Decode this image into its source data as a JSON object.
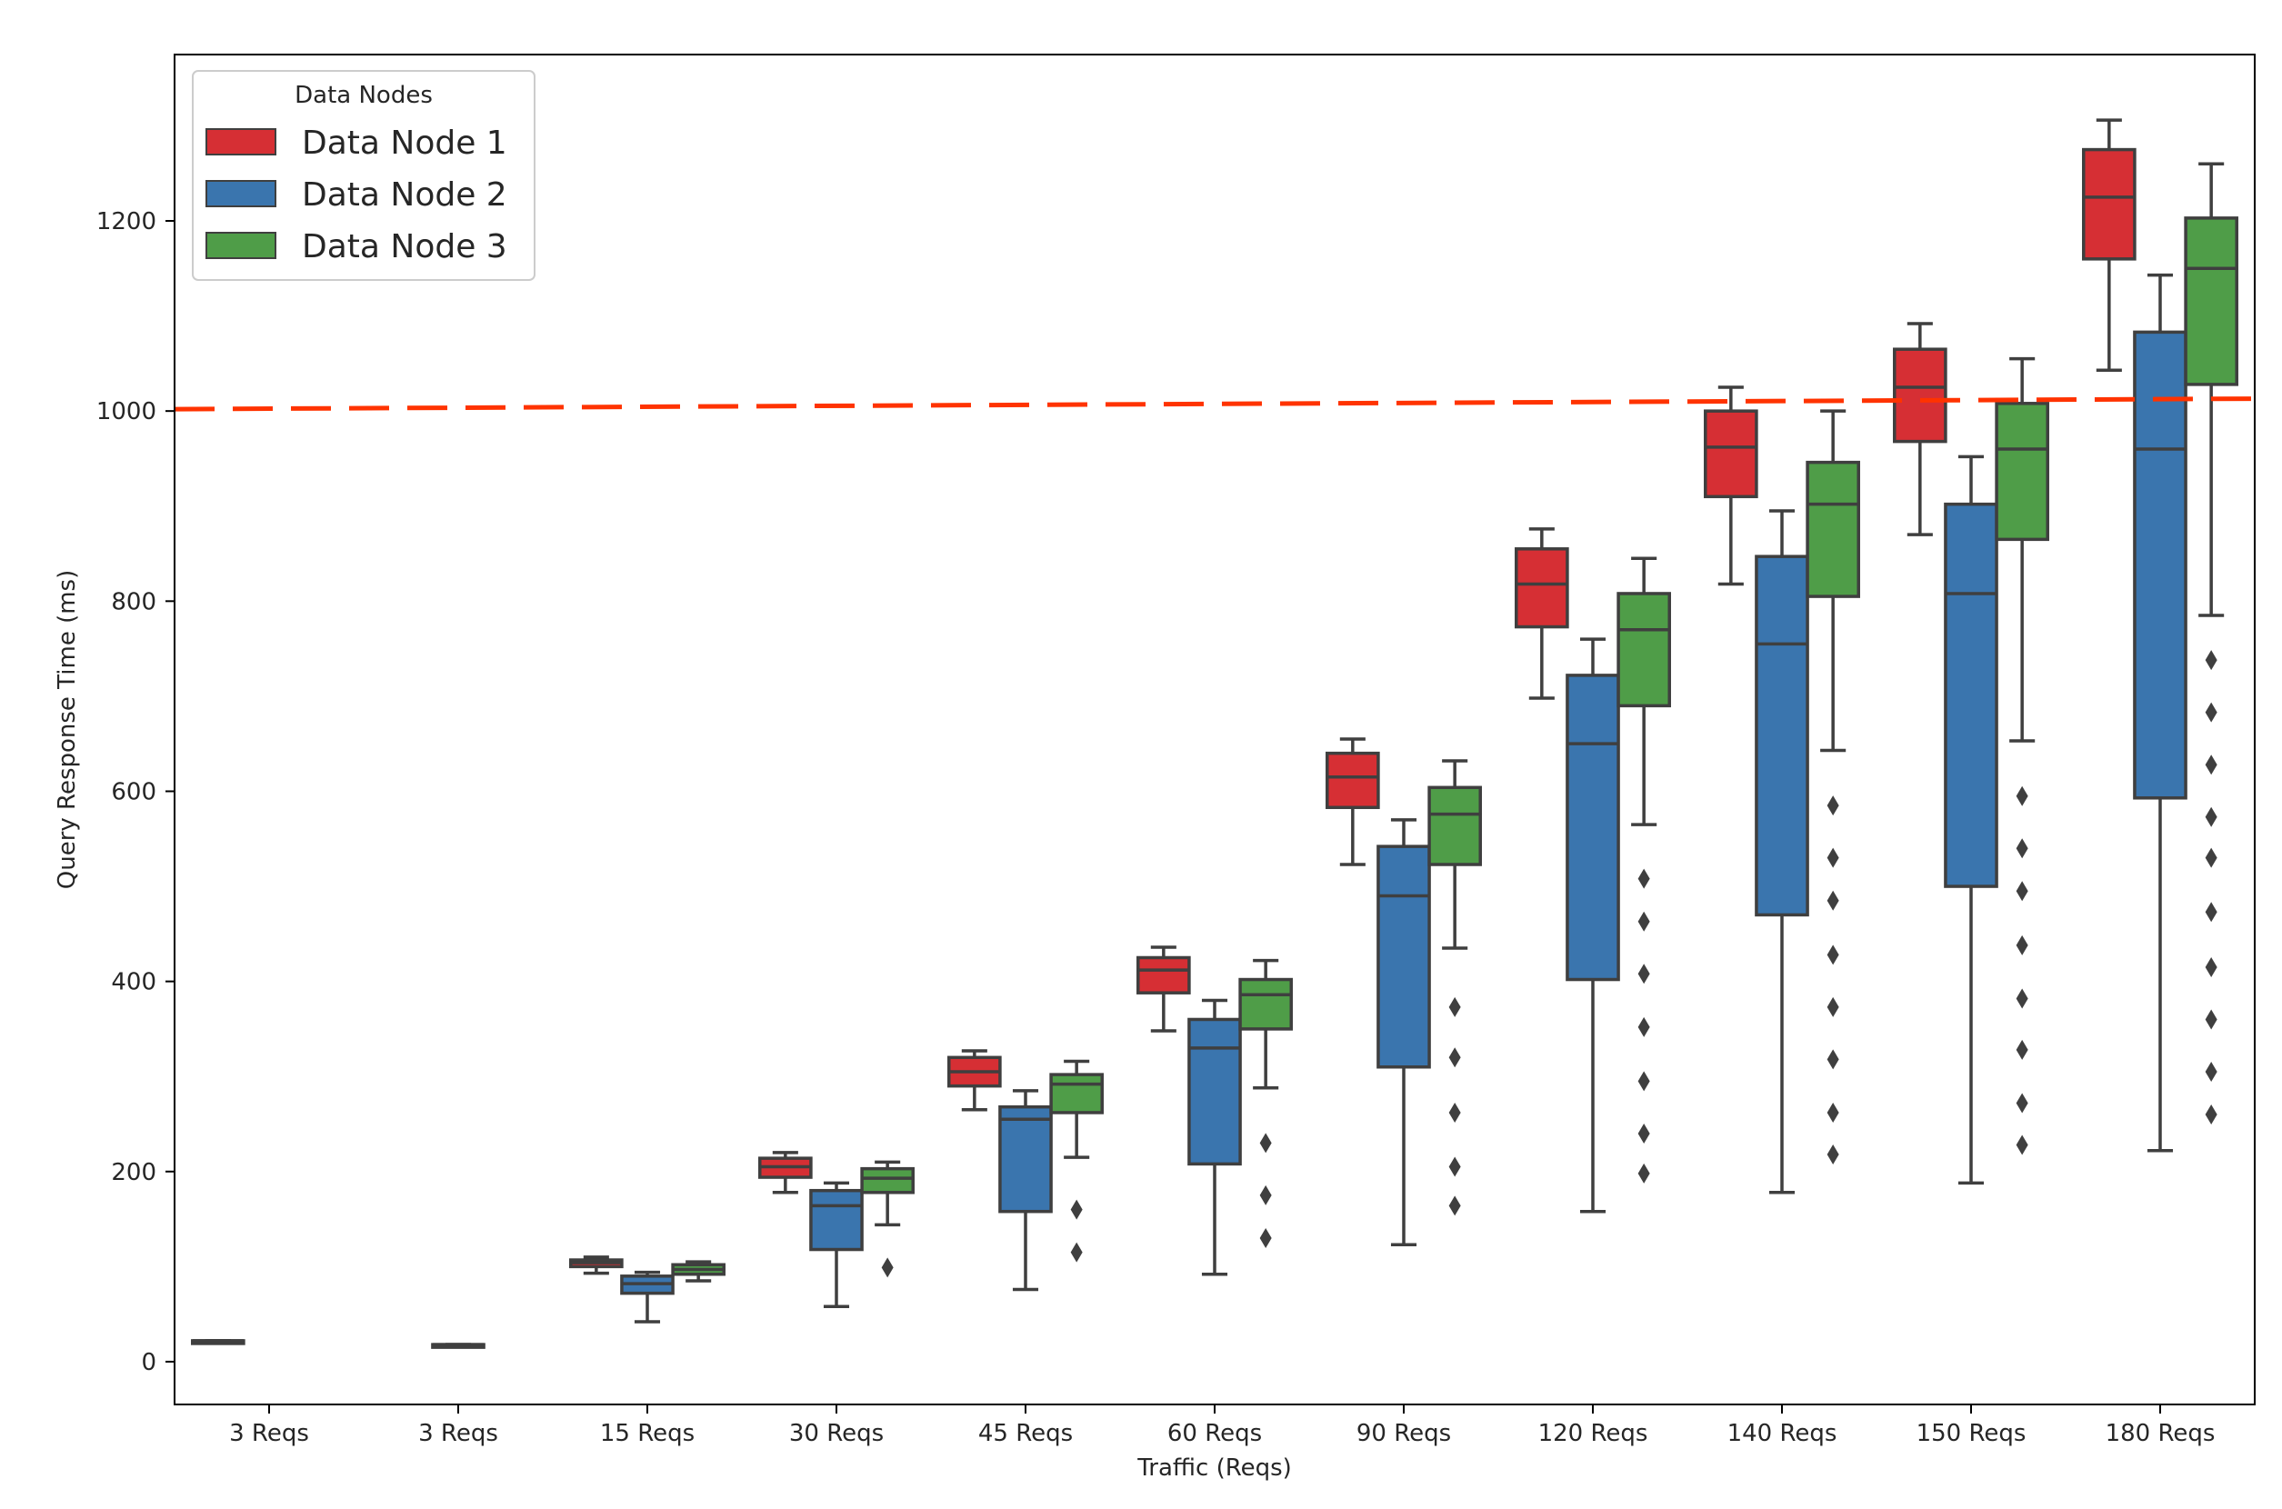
{
  "chart_data": {
    "type": "box",
    "title": "",
    "xlabel": "Traffic (Reqs)",
    "ylabel": "Query Response Time (ms)",
    "ylim": [
      -45,
      1375
    ],
    "yticks": [
      0,
      200,
      400,
      600,
      800,
      1000,
      1200
    ],
    "categories": [
      "3 Reqs",
      "3 Reqs",
      "15 Reqs",
      "30 Reqs",
      "45 Reqs",
      "60 Reqs",
      "90 Reqs",
      "120 Reqs",
      "140 Reqs",
      "150 Reqs",
      "180 Reqs"
    ],
    "legend": {
      "title": "Data Nodes",
      "position": "top-left"
    },
    "threshold": {
      "value_start": 1002,
      "value_end": 1013,
      "color": "#ff3300",
      "style": "dashed"
    },
    "series": [
      {
        "name": "Data Node 1",
        "color": "#d62f34",
        "boxes": [
          {
            "category": 0,
            "wlo": 22,
            "q1": 22,
            "med": 22,
            "q3": 22,
            "whi": 22,
            "fliers": []
          },
          null,
          {
            "category": 2,
            "wlo": 93,
            "q1": 100,
            "med": 104,
            "q3": 107,
            "whi": 110,
            "fliers": []
          },
          {
            "category": 3,
            "wlo": 178,
            "q1": 194,
            "med": 205,
            "q3": 214,
            "whi": 220,
            "fliers": []
          },
          {
            "category": 4,
            "wlo": 265,
            "q1": 290,
            "med": 305,
            "q3": 320,
            "whi": 327,
            "fliers": []
          },
          {
            "category": 5,
            "wlo": 348,
            "q1": 388,
            "med": 412,
            "q3": 425,
            "whi": 436,
            "fliers": []
          },
          {
            "category": 6,
            "wlo": 523,
            "q1": 583,
            "med": 615,
            "q3": 640,
            "whi": 655,
            "fliers": []
          },
          {
            "category": 7,
            "wlo": 698,
            "q1": 773,
            "med": 818,
            "q3": 855,
            "whi": 876,
            "fliers": []
          },
          {
            "category": 8,
            "wlo": 818,
            "q1": 910,
            "med": 962,
            "q3": 1000,
            "whi": 1025,
            "fliers": []
          },
          {
            "category": 9,
            "wlo": 870,
            "q1": 968,
            "med": 1025,
            "q3": 1065,
            "whi": 1092,
            "fliers": []
          },
          {
            "category": 10,
            "wlo": 1043,
            "q1": 1160,
            "med": 1225,
            "q3": 1275,
            "whi": 1306,
            "fliers": []
          }
        ]
      },
      {
        "name": "Data Node 2",
        "color": "#3a75ae",
        "boxes": [
          null,
          {
            "category": 1,
            "wlo": 18,
            "q1": 18,
            "med": 18,
            "q3": 18,
            "whi": 18,
            "fliers": []
          },
          {
            "category": 2,
            "wlo": 42,
            "q1": 72,
            "med": 82,
            "q3": 90,
            "whi": 94,
            "fliers": []
          },
          {
            "category": 3,
            "wlo": 58,
            "q1": 118,
            "med": 164,
            "q3": 180,
            "whi": 188,
            "fliers": []
          },
          {
            "category": 4,
            "wlo": 76,
            "q1": 158,
            "med": 255,
            "q3": 268,
            "whi": 285,
            "fliers": []
          },
          {
            "category": 5,
            "wlo": 92,
            "q1": 208,
            "med": 330,
            "q3": 360,
            "whi": 380,
            "fliers": []
          },
          {
            "category": 6,
            "wlo": 123,
            "q1": 310,
            "med": 490,
            "q3": 542,
            "whi": 570,
            "fliers": []
          },
          {
            "category": 7,
            "wlo": 158,
            "q1": 402,
            "med": 650,
            "q3": 722,
            "whi": 760,
            "fliers": []
          },
          {
            "category": 8,
            "wlo": 178,
            "q1": 470,
            "med": 755,
            "q3": 847,
            "whi": 895,
            "fliers": []
          },
          {
            "category": 9,
            "wlo": 188,
            "q1": 500,
            "med": 808,
            "q3": 902,
            "whi": 952,
            "fliers": []
          },
          {
            "category": 10,
            "wlo": 222,
            "q1": 593,
            "med": 960,
            "q3": 1083,
            "whi": 1143,
            "fliers": []
          }
        ]
      },
      {
        "name": "Data Node 3",
        "color": "#4f9d48",
        "boxes": [
          null,
          null,
          {
            "category": 2,
            "wlo": 85,
            "q1": 92,
            "med": 97,
            "q3": 102,
            "whi": 105,
            "fliers": []
          },
          {
            "category": 3,
            "wlo": 144,
            "q1": 178,
            "med": 193,
            "q3": 203,
            "whi": 210,
            "fliers": [
              99
            ]
          },
          {
            "category": 4,
            "wlo": 215,
            "q1": 262,
            "med": 292,
            "q3": 302,
            "whi": 316,
            "fliers": [
              160,
              115
            ]
          },
          {
            "category": 5,
            "wlo": 288,
            "q1": 350,
            "med": 386,
            "q3": 402,
            "whi": 422,
            "fliers": [
              230,
              175,
              130
            ]
          },
          {
            "category": 6,
            "wlo": 435,
            "q1": 523,
            "med": 576,
            "q3": 604,
            "whi": 632,
            "fliers": [
              373,
              320,
              262,
              205,
              164
            ]
          },
          {
            "category": 7,
            "wlo": 565,
            "q1": 690,
            "med": 770,
            "q3": 808,
            "whi": 845,
            "fliers": [
              508,
              463,
              408,
              352,
              295,
              240,
              198
            ]
          },
          {
            "category": 8,
            "wlo": 643,
            "q1": 805,
            "med": 902,
            "q3": 946,
            "whi": 1000,
            "fliers": [
              585,
              530,
              485,
              428,
              373,
              318,
              262,
              218
            ]
          },
          {
            "category": 9,
            "wlo": 653,
            "q1": 865,
            "med": 960,
            "q3": 1008,
            "whi": 1055,
            "fliers": [
              595,
              540,
              495,
              438,
              382,
              328,
              272,
              228
            ]
          },
          {
            "category": 10,
            "wlo": 785,
            "q1": 1028,
            "med": 1150,
            "q3": 1203,
            "whi": 1260,
            "fliers": [
              738,
              683,
              628,
              573,
              530,
              473,
              415,
              360,
              305,
              260
            ]
          }
        ]
      }
    ]
  }
}
